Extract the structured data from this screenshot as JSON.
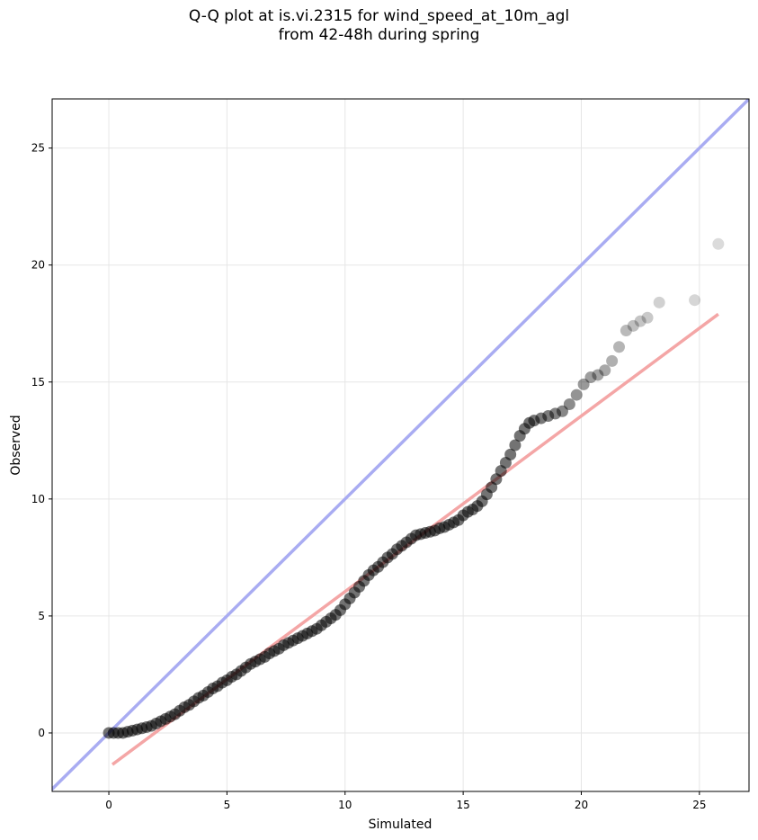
{
  "chart_data": {
    "type": "scatter",
    "title_line1": "Q-Q plot at is.vi.2315 for wind_speed_at_10m_agl",
    "title_line2": "from 42-48h during spring",
    "xlabel": "Simulated",
    "ylabel": "Observed",
    "xlim": [
      -2.4,
      27.1
    ],
    "ylim": [
      -2.5,
      27.1
    ],
    "xticks": [
      0,
      5,
      10,
      15,
      20,
      25
    ],
    "yticks": [
      0,
      5,
      10,
      15,
      20,
      25
    ],
    "grid": true,
    "identity_line_color": "#a9acf2",
    "fit_line_color": "#f4a6a6",
    "point_color": "#000000",
    "fit_line": {
      "x": [
        0.15,
        25.8
      ],
      "y": [
        -1.35,
        17.9
      ]
    },
    "points": [
      [
        0.0,
        0.0
      ],
      [
        0.2,
        0.0
      ],
      [
        0.4,
        0.0
      ],
      [
        0.6,
        0.0
      ],
      [
        0.8,
        0.05
      ],
      [
        1.0,
        0.1
      ],
      [
        1.2,
        0.15
      ],
      [
        1.4,
        0.2
      ],
      [
        1.6,
        0.25
      ],
      [
        1.8,
        0.3
      ],
      [
        2.0,
        0.4
      ],
      [
        2.2,
        0.5
      ],
      [
        2.4,
        0.6
      ],
      [
        2.6,
        0.7
      ],
      [
        2.8,
        0.8
      ],
      [
        3.0,
        0.95
      ],
      [
        3.2,
        1.1
      ],
      [
        3.4,
        1.2
      ],
      [
        3.6,
        1.35
      ],
      [
        3.8,
        1.5
      ],
      [
        4.0,
        1.6
      ],
      [
        4.2,
        1.75
      ],
      [
        4.4,
        1.9
      ],
      [
        4.6,
        2.0
      ],
      [
        4.8,
        2.15
      ],
      [
        5.0,
        2.25
      ],
      [
        5.2,
        2.4
      ],
      [
        5.4,
        2.5
      ],
      [
        5.6,
        2.65
      ],
      [
        5.8,
        2.8
      ],
      [
        6.0,
        2.95
      ],
      [
        6.2,
        3.05
      ],
      [
        6.4,
        3.15
      ],
      [
        6.6,
        3.25
      ],
      [
        6.8,
        3.4
      ],
      [
        7.0,
        3.5
      ],
      [
        7.2,
        3.6
      ],
      [
        7.4,
        3.75
      ],
      [
        7.6,
        3.85
      ],
      [
        7.8,
        3.95
      ],
      [
        8.0,
        4.05
      ],
      [
        8.2,
        4.15
      ],
      [
        8.4,
        4.25
      ],
      [
        8.6,
        4.35
      ],
      [
        8.8,
        4.45
      ],
      [
        9.0,
        4.6
      ],
      [
        9.2,
        4.75
      ],
      [
        9.4,
        4.9
      ],
      [
        9.6,
        5.05
      ],
      [
        9.8,
        5.25
      ],
      [
        10.0,
        5.5
      ],
      [
        10.2,
        5.75
      ],
      [
        10.4,
        6.0
      ],
      [
        10.6,
        6.25
      ],
      [
        10.8,
        6.5
      ],
      [
        11.0,
        6.75
      ],
      [
        11.2,
        6.95
      ],
      [
        11.4,
        7.1
      ],
      [
        11.6,
        7.3
      ],
      [
        11.8,
        7.5
      ],
      [
        12.0,
        7.65
      ],
      [
        12.2,
        7.85
      ],
      [
        12.4,
        8.0
      ],
      [
        12.6,
        8.15
      ],
      [
        12.8,
        8.3
      ],
      [
        13.0,
        8.45
      ],
      [
        13.2,
        8.5
      ],
      [
        13.4,
        8.55
      ],
      [
        13.6,
        8.6
      ],
      [
        13.8,
        8.65
      ],
      [
        14.0,
        8.75
      ],
      [
        14.2,
        8.8
      ],
      [
        14.4,
        8.9
      ],
      [
        14.6,
        9.0
      ],
      [
        14.8,
        9.1
      ],
      [
        15.0,
        9.3
      ],
      [
        15.2,
        9.45
      ],
      [
        15.4,
        9.55
      ],
      [
        15.6,
        9.7
      ],
      [
        15.8,
        9.9
      ],
      [
        16.0,
        10.2
      ],
      [
        16.2,
        10.5
      ],
      [
        16.4,
        10.85
      ],
      [
        16.6,
        11.2
      ],
      [
        16.8,
        11.55
      ],
      [
        17.0,
        11.9
      ],
      [
        17.2,
        12.3
      ],
      [
        17.4,
        12.7
      ],
      [
        17.6,
        13.0
      ],
      [
        17.8,
        13.25
      ],
      [
        18.0,
        13.35
      ],
      [
        18.3,
        13.45
      ],
      [
        18.6,
        13.55
      ],
      [
        18.9,
        13.65
      ],
      [
        19.2,
        13.75
      ],
      [
        19.5,
        14.05
      ],
      [
        19.8,
        14.45
      ],
      [
        20.1,
        14.9
      ],
      [
        20.4,
        15.2
      ],
      [
        20.7,
        15.3
      ],
      [
        21.0,
        15.5
      ],
      [
        21.3,
        15.9
      ],
      [
        21.6,
        16.5
      ],
      [
        21.9,
        17.2
      ],
      [
        22.2,
        17.4
      ],
      [
        22.5,
        17.6
      ],
      [
        22.8,
        17.75
      ],
      [
        23.3,
        18.4
      ],
      [
        24.8,
        18.5
      ],
      [
        25.8,
        20.9
      ]
    ]
  }
}
